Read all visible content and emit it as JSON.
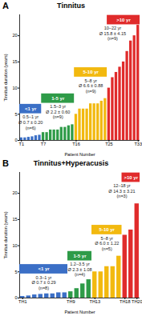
{
  "chart_data": [
    {
      "type": "bar",
      "panel_label": "A",
      "title": "Tinnitus",
      "x_label": "Patient Number",
      "y_label": "Tinnitus duration (years)",
      "categories": [
        "T1",
        null,
        null,
        null,
        null,
        null,
        "T7",
        null,
        null,
        null,
        null,
        null,
        null,
        null,
        null,
        "T16",
        null,
        null,
        null,
        null,
        null,
        null,
        null,
        null,
        "T25",
        null,
        null,
        null,
        null,
        null,
        null,
        null,
        "T33"
      ],
      "series": [
        {
          "name": "<1 yr",
          "color": "#3b6fc6",
          "annotations": [
            "0.5–1 yr",
            "Ø 0.7 ± 0.20",
            "(n=6)"
          ],
          "values": [
            0.5,
            0.5,
            0.6,
            0.7,
            0.9,
            1.0,
            null,
            null,
            null,
            null,
            null,
            null,
            null,
            null,
            null,
            null,
            null,
            null,
            null,
            null,
            null,
            null,
            null,
            null,
            null,
            null,
            null,
            null,
            null,
            null,
            null,
            null,
            null
          ]
        },
        {
          "name": "1-5 yr",
          "color": "#2e9b48",
          "annotations": [
            "1.5–3 yr",
            "Ø 2.2 ± 0.60",
            "(n=9)"
          ],
          "values": [
            null,
            null,
            null,
            null,
            null,
            null,
            1.5,
            1.5,
            2,
            2,
            2,
            2.5,
            2.5,
            2.8,
            3,
            null,
            null,
            null,
            null,
            null,
            null,
            null,
            null,
            null,
            null,
            null,
            null,
            null,
            null,
            null,
            null,
            null,
            null
          ]
        },
        {
          "name": "5-10 yr",
          "color": "#f2b90f",
          "annotations": [
            "5–8 yr",
            "Ø 6.6 ± 0.88",
            "(n=9)"
          ],
          "values": [
            null,
            null,
            null,
            null,
            null,
            null,
            null,
            null,
            null,
            null,
            null,
            null,
            null,
            null,
            null,
            5,
            6,
            6,
            6,
            7,
            7,
            7,
            7.5,
            8,
            null,
            null,
            null,
            null,
            null,
            null,
            null,
            null,
            null
          ]
        },
        {
          "name": ">10 yr",
          "color": "#e02b2b",
          "annotations": [
            "10–22 yr",
            "Ø 15.8 ± 4.15",
            "(n=9)"
          ],
          "values": [
            null,
            null,
            null,
            null,
            null,
            null,
            null,
            null,
            null,
            null,
            null,
            null,
            null,
            null,
            null,
            null,
            null,
            null,
            null,
            null,
            null,
            null,
            null,
            null,
            10,
            12,
            13,
            14,
            15,
            17,
            19,
            20,
            22
          ]
        }
      ],
      "ylim": [
        0,
        24
      ],
      "yticks": [
        0,
        5,
        10,
        15,
        20
      ],
      "grid": false
    },
    {
      "type": "bar",
      "panel_label": "B",
      "title": "Tinnitus+Hyperacusis",
      "x_label": "Patient Number",
      "y_label": "Tinnitus duration (years)",
      "categories": [
        "TH1",
        null,
        null,
        null,
        null,
        null,
        null,
        null,
        "TH9",
        null,
        null,
        null,
        "TH13",
        null,
        null,
        null,
        null,
        "TH18",
        null,
        "TH20"
      ],
      "series": [
        {
          "name": "<1 yr",
          "color": "#3b6fc6",
          "annotations": [
            "0.3–1 yr",
            "Ø 0.7 ± 0.29",
            "(n=8)"
          ],
          "values": [
            0.3,
            0.4,
            0.6,
            0.7,
            0.8,
            0.8,
            1,
            1,
            null,
            null,
            null,
            null,
            null,
            null,
            null,
            null,
            null,
            null,
            null,
            null
          ]
        },
        {
          "name": "1-5 yr",
          "color": "#2e9b48",
          "annotations": [
            "1.2–3.5 yr",
            "Ø 2.3 ± 1.08",
            "(n=4)"
          ],
          "values": [
            null,
            null,
            null,
            null,
            null,
            null,
            null,
            null,
            1.2,
            1.8,
            2.7,
            3.5,
            null,
            null,
            null,
            null,
            null,
            null,
            null,
            null
          ]
        },
        {
          "name": "5-10 yr",
          "color": "#f2b90f",
          "annotations": [
            "5–8 yr",
            "Ø 6.0 ± 1.22",
            "(n=5)"
          ],
          "values": [
            null,
            null,
            null,
            null,
            null,
            null,
            null,
            null,
            null,
            null,
            null,
            null,
            5,
            5,
            6,
            6,
            8,
            null,
            null,
            null
          ]
        },
        {
          "name": ">10 yr",
          "color": "#e02b2b",
          "annotations": [
            "12–18 yr",
            "Ø 14.3 ± 3.21",
            "(n=3)"
          ],
          "values": [
            null,
            null,
            null,
            null,
            null,
            null,
            null,
            null,
            null,
            null,
            null,
            null,
            null,
            null,
            null,
            null,
            null,
            12,
            13,
            18
          ]
        }
      ],
      "ylim": [
        0,
        24
      ],
      "yticks": [
        0,
        5,
        10,
        15,
        20
      ],
      "grid": false
    }
  ]
}
